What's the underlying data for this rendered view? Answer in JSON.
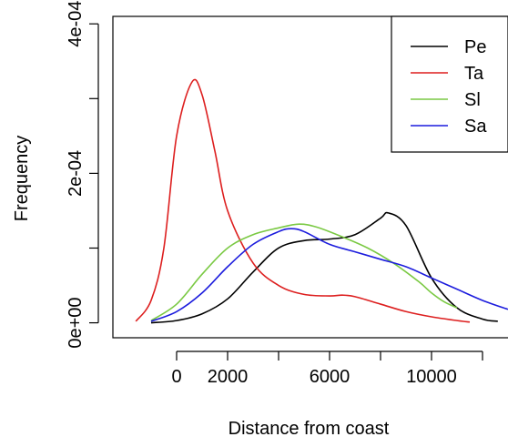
{
  "chart_data": {
    "type": "line",
    "xlabel": "Distance from coast",
    "ylabel": "Frequency",
    "xlim": [
      -2500,
      13000
    ],
    "ylim": [
      -2e-05,
      0.00041
    ],
    "x_ticks": [
      0,
      2000,
      4000,
      6000,
      8000,
      10000,
      12000
    ],
    "x_tick_labels": [
      "0",
      "2000",
      "",
      "6000",
      "",
      "10000",
      ""
    ],
    "y_ticks": [
      0,
      0.0001,
      0.0002,
      0.0003,
      0.0004
    ],
    "y_tick_labels": [
      "0e+00",
      "",
      "2e-04",
      "",
      "4e-04"
    ],
    "legend_position": "top-right",
    "grid": false,
    "series": [
      {
        "name": "Pe",
        "color": "#000000",
        "points": [
          [
            -1000,
            0
          ],
          [
            0,
            3e-06
          ],
          [
            1000,
            1.2e-05
          ],
          [
            2000,
            3.2e-05
          ],
          [
            3000,
            6.8e-05
          ],
          [
            4000,
            0.0001
          ],
          [
            5000,
            0.00011
          ],
          [
            6000,
            0.000112
          ],
          [
            7000,
            0.000118
          ],
          [
            8000,
            0.00014
          ],
          [
            8300,
            0.000147
          ],
          [
            9000,
            0.00013
          ],
          [
            10000,
            6e-05
          ],
          [
            11000,
            2e-05
          ],
          [
            12000,
            5e-06
          ],
          [
            12600,
            2e-06
          ]
        ]
      },
      {
        "name": "Ta",
        "color": "#dd1f1f",
        "points": [
          [
            -1600,
            2e-06
          ],
          [
            -1000,
            3e-05
          ],
          [
            -500,
            0.0001
          ],
          [
            0,
            0.00025
          ],
          [
            600,
            0.000322
          ],
          [
            1000,
            0.000305
          ],
          [
            1500,
            0.00023
          ],
          [
            2000,
            0.00015
          ],
          [
            3000,
            8e-05
          ],
          [
            4000,
            5e-05
          ],
          [
            5000,
            3.8e-05
          ],
          [
            6000,
            3.6e-05
          ],
          [
            6500,
            3.7e-05
          ],
          [
            7000,
            3.5e-05
          ],
          [
            8000,
            2.5e-05
          ],
          [
            9000,
            1.5e-05
          ],
          [
            10000,
            8e-06
          ],
          [
            11000,
            3e-06
          ],
          [
            11500,
            1e-06
          ]
        ]
      },
      {
        "name": "Sl",
        "color": "#7ac943",
        "points": [
          [
            -1000,
            3e-06
          ],
          [
            0,
            2.5e-05
          ],
          [
            1000,
            6.5e-05
          ],
          [
            2000,
            0.0001
          ],
          [
            3000,
            0.000118
          ],
          [
            4000,
            0.000127
          ],
          [
            4800,
            0.000132
          ],
          [
            5500,
            0.000128
          ],
          [
            6500,
            0.000115
          ],
          [
            7500,
            0.0001
          ],
          [
            8500,
            8e-05
          ],
          [
            9500,
            5.5e-05
          ],
          [
            10000,
            4e-05
          ],
          [
            10500,
            2.8e-05
          ],
          [
            11000,
            2e-05
          ]
        ]
      },
      {
        "name": "Sa",
        "color": "#1c1cdd",
        "points": [
          [
            -1000,
            2e-06
          ],
          [
            0,
            1.5e-05
          ],
          [
            1000,
            4e-05
          ],
          [
            2000,
            7.5e-05
          ],
          [
            3000,
            0.000105
          ],
          [
            4000,
            0.000122
          ],
          [
            4500,
            0.000126
          ],
          [
            5000,
            0.000122
          ],
          [
            6000,
            0.000105
          ],
          [
            7000,
            9.5e-05
          ],
          [
            8000,
            8.5e-05
          ],
          [
            9000,
            7.5e-05
          ],
          [
            10000,
            6e-05
          ],
          [
            11000,
            4.5e-05
          ],
          [
            12000,
            3e-05
          ],
          [
            13000,
            1.8e-05
          ]
        ]
      }
    ]
  }
}
